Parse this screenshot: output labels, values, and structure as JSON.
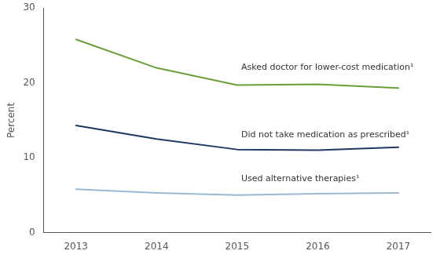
{
  "chart_data": {
    "type": "line",
    "x": [
      2013,
      2014,
      2015,
      2016,
      2017
    ],
    "series": [
      {
        "name": "Asked doctor for lower-cost medication¹",
        "color": "#6a9e3a",
        "values": [
          25.8,
          22.0,
          19.7,
          19.8,
          19.3
        ]
      },
      {
        "name": "Did not take medication as prescribed¹",
        "color": "#1f3864",
        "values": [
          14.3,
          12.5,
          11.1,
          11.0,
          11.4
        ]
      },
      {
        "name": "Used alternative therapies¹",
        "color": "#9ab7d3",
        "values": [
          5.8,
          5.3,
          5.0,
          5.2,
          5.3
        ]
      }
    ],
    "y_label": "Percent",
    "xlim": [
      2012.6,
      2017.4
    ],
    "xticks": [
      2013,
      2014,
      2015,
      2016,
      2017
    ],
    "ylim": [
      0,
      30
    ],
    "yticks": [
      0,
      10,
      20,
      30
    ],
    "annotations": [
      {
        "text": "Asked doctor for lower-cost medication¹",
        "x": 2015.05,
        "y": 22.0
      },
      {
        "text": "Did not take medication as prescribed¹",
        "x": 2015.05,
        "y": 13.0
      },
      {
        "text": "Used alternative therapies¹",
        "x": 2015.05,
        "y": 7.2
      }
    ],
    "grid": false
  }
}
